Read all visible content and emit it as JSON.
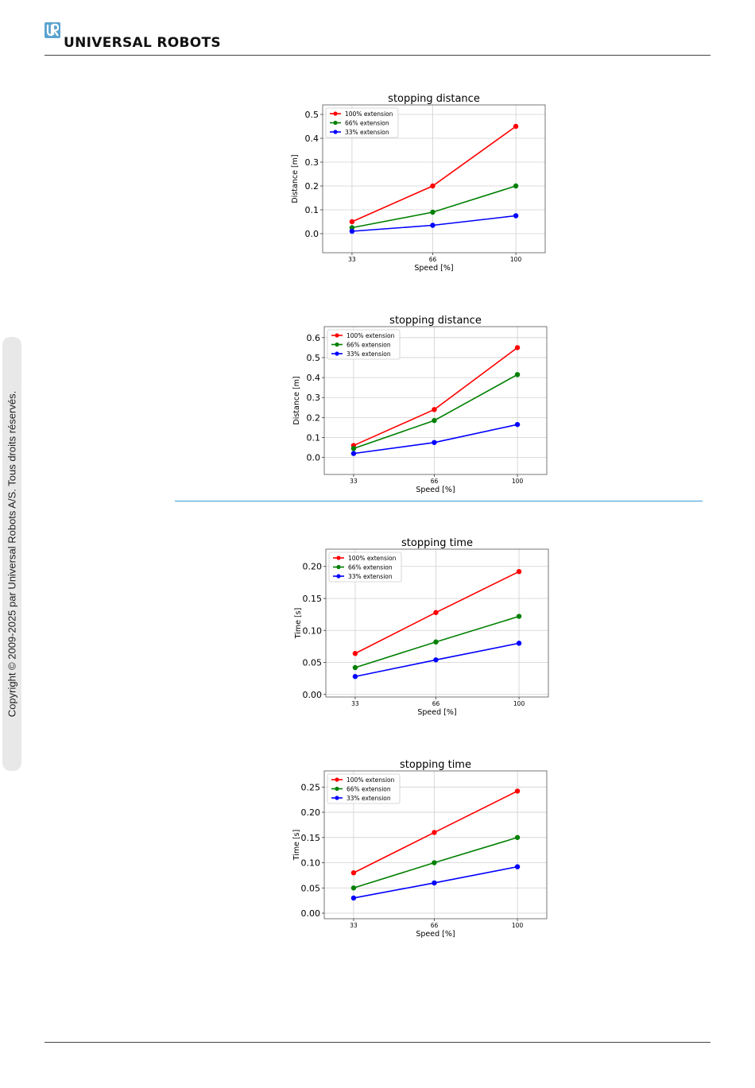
{
  "header": {
    "logo_text": "UNIVERSAL ROBOTS",
    "brand_color": "#5ba3d0"
  },
  "side": {
    "copyright": "Copyright © 2009-2025 par Universal Robots A/S. Tous droits réservés."
  },
  "series_colors": {
    "100% extension": "#ff0000",
    "66% extension": "#008000",
    "33% extension": "#0000ff"
  },
  "chart_data": [
    {
      "type": "line",
      "title": "stopping distance",
      "xlabel": "Speed [%]",
      "ylabel": "Distance [m]",
      "x": [
        33,
        66,
        100
      ],
      "yticks": [
        "0.0",
        "0.1",
        "0.2",
        "0.3",
        "0.4",
        "0.5"
      ],
      "ylim": [
        -0.08,
        0.54
      ],
      "grid": true,
      "legend": "upper-left",
      "series": [
        {
          "name": "100% extension",
          "values": [
            0.05,
            0.2,
            0.45
          ]
        },
        {
          "name": "66% extension",
          "values": [
            0.025,
            0.09,
            0.2
          ]
        },
        {
          "name": "33% extension",
          "values": [
            0.01,
            0.035,
            0.075
          ]
        }
      ]
    },
    {
      "type": "line",
      "title": "stopping distance",
      "xlabel": "Speed [%]",
      "ylabel": "Distance [m]",
      "x": [
        33,
        66,
        100
      ],
      "yticks": [
        "0.0",
        "0.1",
        "0.2",
        "0.3",
        "0.4",
        "0.5",
        "0.6"
      ],
      "ylim": [
        -0.085,
        0.655
      ],
      "grid": true,
      "legend": "upper-left",
      "series": [
        {
          "name": "100% extension",
          "values": [
            0.06,
            0.24,
            0.55
          ]
        },
        {
          "name": "66% extension",
          "values": [
            0.045,
            0.185,
            0.415
          ]
        },
        {
          "name": "33% extension",
          "values": [
            0.02,
            0.075,
            0.165
          ]
        }
      ]
    },
    {
      "type": "line",
      "title": "stopping time",
      "xlabel": "Speed [%]",
      "ylabel": "Time [s]",
      "x": [
        33,
        66,
        100
      ],
      "yticks": [
        "0.00",
        "0.05",
        "0.10",
        "0.15",
        "0.20"
      ],
      "ylim": [
        -0.004,
        0.227
      ],
      "grid": true,
      "legend": "upper-left",
      "series": [
        {
          "name": "100% extension",
          "values": [
            0.064,
            0.128,
            0.192
          ]
        },
        {
          "name": "66% extension",
          "values": [
            0.042,
            0.082,
            0.122
          ]
        },
        {
          "name": "33% extension",
          "values": [
            0.028,
            0.054,
            0.08
          ]
        }
      ]
    },
    {
      "type": "line",
      "title": "stopping time",
      "xlabel": "Speed [%]",
      "ylabel": "Time [s]",
      "x": [
        33,
        66,
        100
      ],
      "yticks": [
        "0.00",
        "0.05",
        "0.10",
        "0.15",
        "0.20",
        "0.25"
      ],
      "ylim": [
        -0.011,
        0.282
      ],
      "grid": true,
      "legend": "upper-left",
      "series": [
        {
          "name": "100% extension",
          "values": [
            0.08,
            0.16,
            0.242
          ]
        },
        {
          "name": "66% extension",
          "values": [
            0.05,
            0.1,
            0.15
          ]
        },
        {
          "name": "33% extension",
          "values": [
            0.03,
            0.06,
            0.092
          ]
        }
      ]
    }
  ]
}
